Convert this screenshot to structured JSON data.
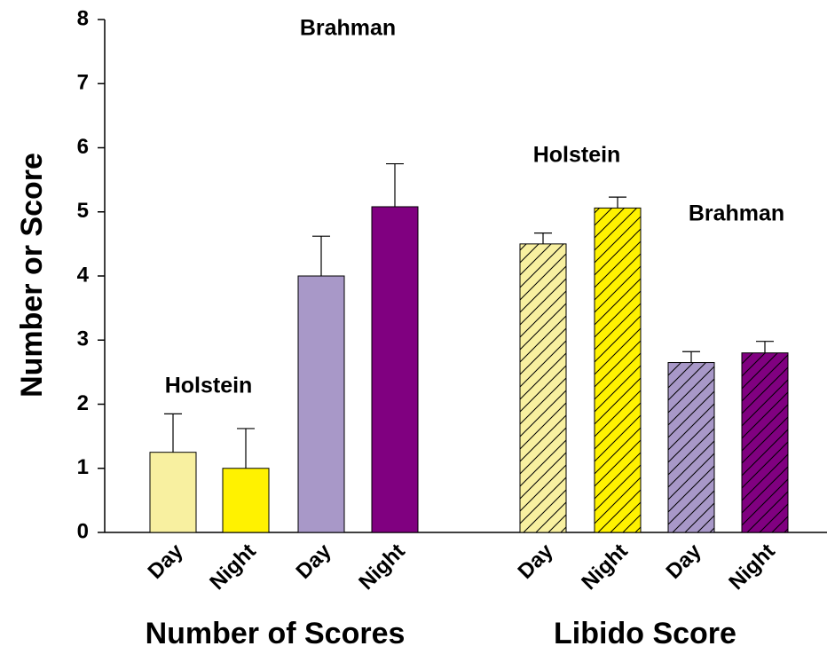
{
  "chart_data": {
    "type": "bar",
    "y_label": "Number or Score",
    "ylim": [
      0,
      8
    ],
    "yticks": [
      0,
      1,
      2,
      3,
      4,
      5,
      6,
      7,
      8
    ],
    "categories": [
      "Day",
      "Night",
      "Day",
      "Night",
      "Day",
      "Night",
      "Day",
      "Night"
    ],
    "values": [
      1.25,
      1.0,
      4.0,
      5.08,
      4.5,
      5.06,
      2.65,
      2.8
    ],
    "errors": [
      0.6,
      0.62,
      0.62,
      0.67,
      0.17,
      0.17,
      0.17,
      0.18
    ],
    "colors": [
      "#f8f0a0",
      "#fff200",
      "#a898c8",
      "#800080",
      "#f8f0a0",
      "#fff200",
      "#a898c8",
      "#800080"
    ],
    "hatched": [
      false,
      false,
      false,
      false,
      true,
      true,
      true,
      true
    ],
    "groups": [
      "Number of Scores",
      "Libido Score"
    ],
    "annotations": [
      "Holstein",
      "Brahman",
      "Holstein",
      "Brahman"
    ]
  }
}
